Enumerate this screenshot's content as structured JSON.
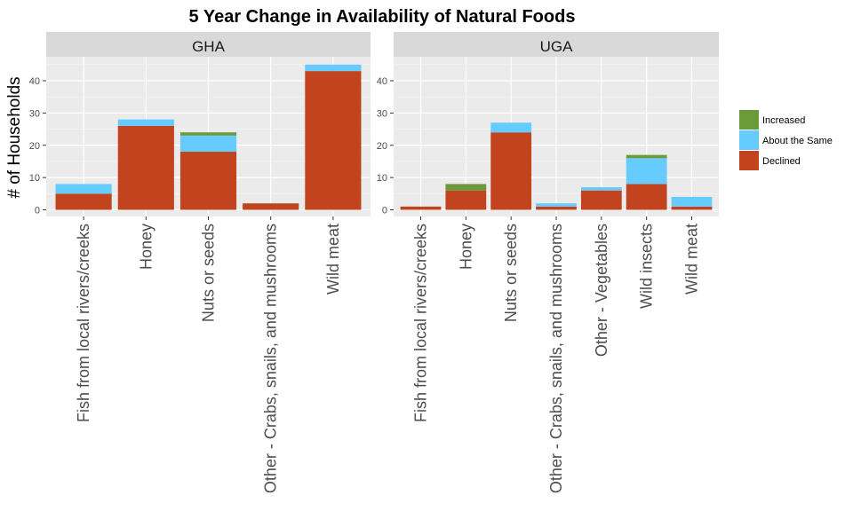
{
  "chart_data": {
    "type": "bar",
    "stacked": true,
    "title": "5 Year Change in Availability of Natural Foods",
    "ylabel": "# of Households",
    "xlabel": "",
    "ylim": [
      0,
      47
    ],
    "yticks": [
      0,
      10,
      20,
      30,
      40
    ],
    "grid": true,
    "legend_position": "right",
    "legend": [
      {
        "name": "Increased",
        "color": "#6b9a3a"
      },
      {
        "name": "About the Same",
        "color": "#66ccff"
      },
      {
        "name": "Declined",
        "color": "#c1441f"
      }
    ],
    "panels": [
      {
        "label": "GHA",
        "categories": [
          "Fish from local rivers/creeks",
          "Honey",
          "Nuts or seeds",
          "Other - Crabs, snails, and mushrooms",
          "Wild meat"
        ],
        "series": [
          {
            "name": "Declined",
            "values": [
              5,
              26,
              18,
              2,
              43
            ]
          },
          {
            "name": "About the Same",
            "values": [
              3,
              2,
              5,
              0,
              2
            ]
          },
          {
            "name": "Increased",
            "values": [
              0,
              0,
              1,
              0,
              0
            ]
          }
        ]
      },
      {
        "label": "UGA",
        "categories": [
          "Fish from local rivers/creeks",
          "Honey",
          "Nuts or seeds",
          "Other - Crabs, snails, and mushrooms",
          "Other - Vegetables",
          "Wild insects",
          "Wild meat"
        ],
        "series": [
          {
            "name": "Declined",
            "values": [
              1,
              6,
              24,
              1,
              6,
              8,
              1
            ]
          },
          {
            "name": "About the Same",
            "values": [
              0,
              0,
              3,
              1,
              1,
              8,
              3
            ]
          },
          {
            "name": "Increased",
            "values": [
              0,
              2,
              0,
              0,
              0,
              1,
              0
            ]
          }
        ]
      }
    ]
  }
}
